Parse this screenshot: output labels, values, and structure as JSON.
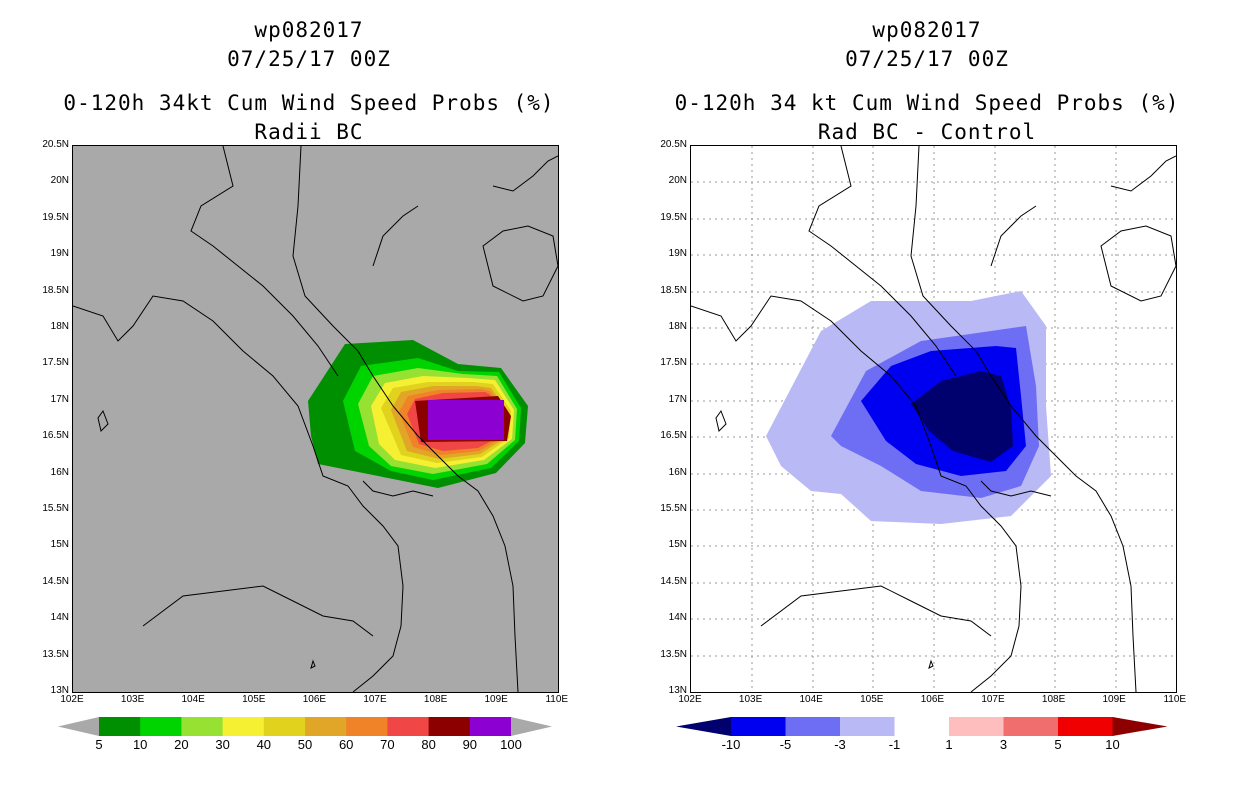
{
  "left_panel": {
    "title_line1": "wp082017",
    "title_line2": "07/25/17 00Z",
    "title_line3": "0-120h 34kt Cum Wind Speed Probs (%)",
    "title_line4": "Radii BC",
    "background_color": "#a9a9a9",
    "colorbar": {
      "labels": [
        "5",
        "10",
        "20",
        "30",
        "40",
        "50",
        "60",
        "70",
        "80",
        "90",
        "100"
      ],
      "colors": [
        "#008f00",
        "#00d400",
        "#96e132",
        "#f5f032",
        "#e1d21e",
        "#e1a528",
        "#f08228",
        "#f04646",
        "#8c0000",
        "#8c00d2"
      ]
    }
  },
  "right_panel": {
    "title_line1": "wp082017",
    "title_line2": "07/25/17 00Z",
    "title_line3": "0-120h 34 kt Cum Wind Speed Probs (%)",
    "title_line4": "Rad BC - Control",
    "background_color": "#ffffff",
    "colorbar": {
      "labels": [
        "-10",
        "-5",
        "-3",
        "-1",
        "1",
        "3",
        "5",
        "10"
      ],
      "colors": [
        "#00006e",
        "#0000f0",
        "#6e6ef5",
        "#b9b9f5",
        "#ffffff",
        "#ffbebe",
        "#f06e6e",
        "#f00000",
        "#8c0000"
      ]
    }
  },
  "axes": {
    "lat_labels": [
      "20.5N",
      "20N",
      "19.5N",
      "19N",
      "18.5N",
      "18N",
      "17.5N",
      "17N",
      "16.5N",
      "16N",
      "15.5N",
      "15N",
      "14.5N",
      "14N",
      "13.5N",
      "13N"
    ],
    "lon_labels": [
      "102E",
      "103E",
      "104E",
      "105E",
      "106E",
      "107E",
      "108E",
      "109E",
      "110E"
    ]
  }
}
